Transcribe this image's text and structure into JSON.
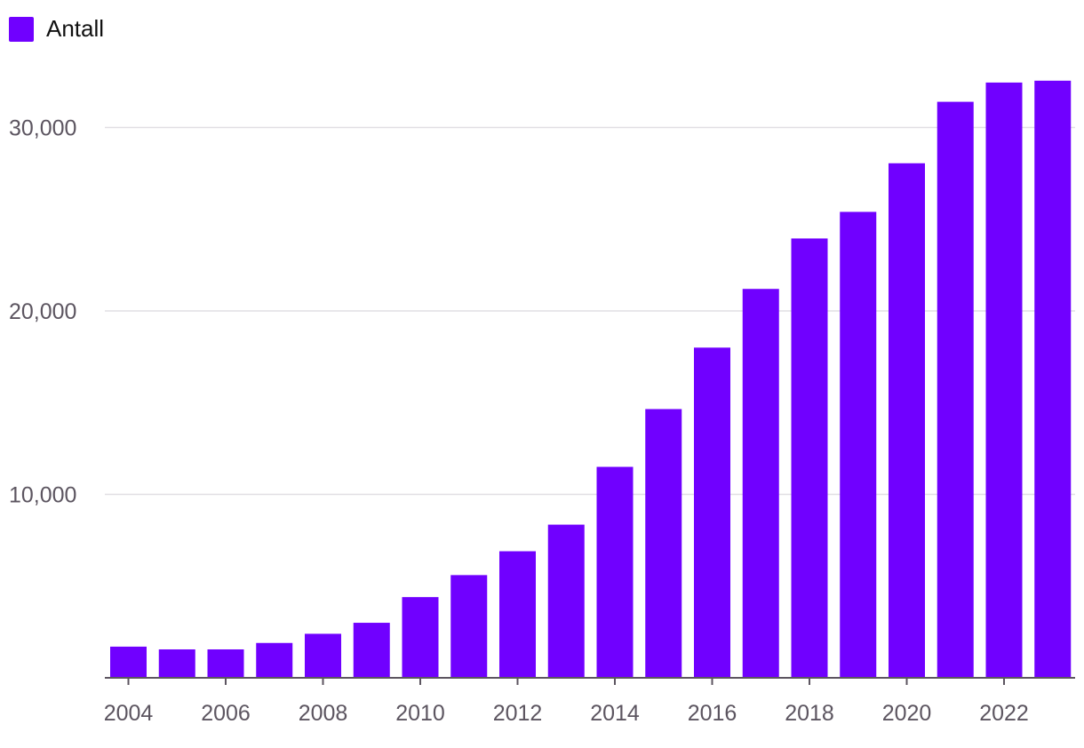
{
  "chart_data": {
    "type": "bar",
    "title": "",
    "xlabel": "",
    "ylabel": "",
    "legend": {
      "position": "top-left",
      "label": "Antall",
      "color": "#7000ff"
    },
    "categories": [
      "2004",
      "2005",
      "2006",
      "2007",
      "2008",
      "2009",
      "2010",
      "2011",
      "2012",
      "2013",
      "2014",
      "2015",
      "2016",
      "2017",
      "2018",
      "2019",
      "2020",
      "2021",
      "2022",
      "2023"
    ],
    "series": [
      {
        "name": "Antall",
        "color": "#7000ff",
        "values": [
          1700,
          1550,
          1550,
          1900,
          2400,
          3000,
          4400,
          5600,
          6900,
          8350,
          11500,
          14650,
          18000,
          21200,
          23950,
          25400,
          28050,
          31400,
          32450,
          32550
        ]
      }
    ],
    "ylim": [
      0,
      33500
    ],
    "yticks": [
      10000,
      20000,
      30000
    ],
    "ytick_labels": [
      "10,000",
      "20,000",
      "30,000"
    ],
    "xtick_labels": [
      "2004",
      "2006",
      "2008",
      "2010",
      "2012",
      "2014",
      "2016",
      "2018",
      "2020",
      "2022"
    ],
    "grid": true,
    "colors": {
      "bar": "#7000ff",
      "grid": "#e1dfe3",
      "axis": "#5c5560",
      "text": "#5c5560"
    }
  }
}
